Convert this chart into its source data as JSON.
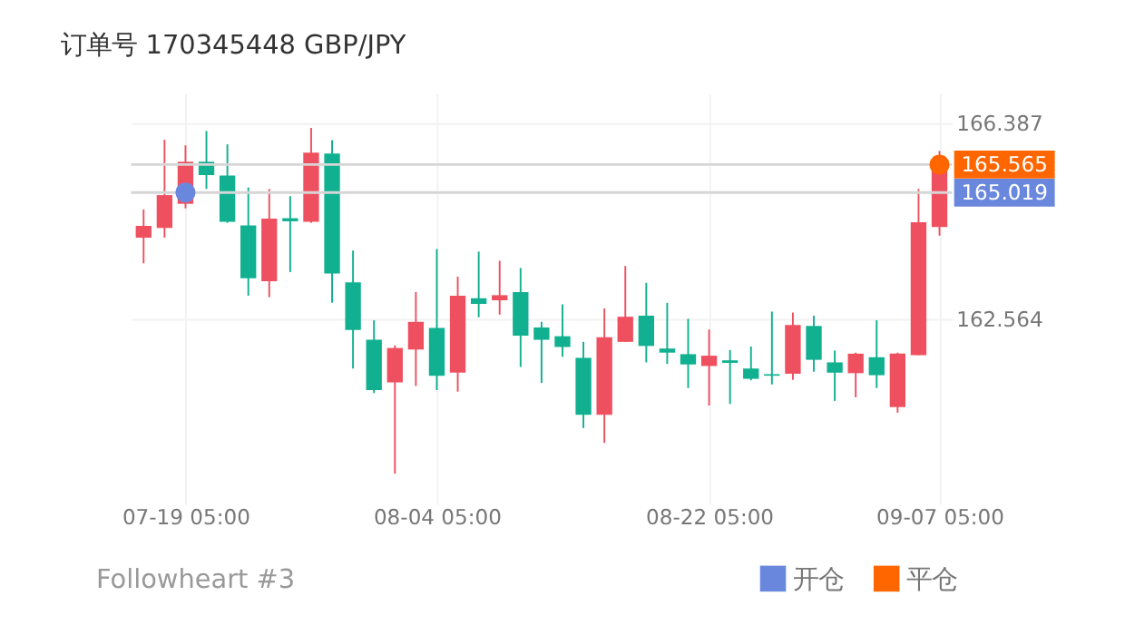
{
  "chart_data": {
    "type": "candlestick",
    "title": "订单号 170345448    GBP/JPY",
    "categories": [
      null,
      null,
      "07-19 05:00",
      null,
      null,
      null,
      null,
      null,
      null,
      null,
      null,
      null,
      null,
      null,
      "08-04 05:00",
      null,
      null,
      null,
      null,
      null,
      null,
      null,
      null,
      null,
      null,
      null,
      null,
      "08-22 05:00",
      null,
      null,
      null,
      null,
      null,
      null,
      null,
      null,
      null,
      null,
      "09-07 05:00"
    ],
    "ohlc": [
      [
        164.14,
        164.69,
        163.64,
        164.37
      ],
      [
        164.33,
        166.05,
        164.14,
        164.97
      ],
      [
        164.8,
        165.94,
        164.71,
        165.62
      ],
      [
        165.62,
        166.22,
        165.09,
        165.36
      ],
      [
        165.35,
        165.96,
        164.43,
        164.45
      ],
      [
        164.38,
        165.12,
        163.01,
        163.35
      ],
      [
        163.29,
        165.09,
        162.98,
        164.51
      ],
      [
        164.52,
        164.95,
        163.47,
        164.46
      ],
      [
        164.45,
        166.28,
        164.43,
        165.8
      ],
      [
        165.78,
        166.04,
        162.87,
        163.44
      ],
      [
        163.27,
        163.89,
        161.59,
        162.34
      ],
      [
        162.15,
        162.53,
        161.11,
        161.17
      ],
      [
        161.32,
        162.04,
        159.54,
        161.99
      ],
      [
        161.96,
        163.08,
        161.25,
        162.5
      ],
      [
        162.38,
        163.92,
        161.17,
        161.45
      ],
      [
        161.51,
        163.38,
        161.14,
        163.01
      ],
      [
        162.96,
        163.87,
        162.59,
        162.85
      ],
      [
        162.92,
        163.69,
        162.64,
        163.02
      ],
      [
        163.08,
        163.55,
        161.62,
        162.23
      ],
      [
        162.39,
        162.5,
        161.31,
        162.15
      ],
      [
        162.22,
        162.84,
        161.82,
        162.01
      ],
      [
        161.8,
        162.11,
        160.43,
        160.69
      ],
      [
        160.69,
        162.76,
        160.14,
        162.2
      ],
      [
        162.11,
        163.59,
        162.11,
        162.6
      ],
      [
        162.62,
        163.26,
        161.71,
        162.03
      ],
      [
        161.98,
        162.87,
        161.68,
        161.9
      ],
      [
        161.87,
        162.56,
        161.21,
        161.67
      ],
      [
        161.64,
        162.35,
        160.87,
        161.84
      ],
      [
        161.75,
        161.95,
        160.9,
        161.7
      ],
      [
        161.59,
        162.02,
        161.36,
        161.39
      ],
      [
        161.48,
        162.7,
        161.28,
        161.45
      ],
      [
        161.49,
        162.68,
        161.37,
        162.44
      ],
      [
        162.42,
        162.62,
        161.53,
        161.76
      ],
      [
        161.71,
        161.94,
        160.96,
        161.51
      ],
      [
        161.5,
        161.9,
        161.03,
        161.88
      ],
      [
        161.81,
        162.53,
        161.21,
        161.46
      ],
      [
        160.84,
        161.9,
        160.73,
        161.88
      ],
      [
        161.85,
        165.09,
        161.85,
        164.44
      ],
      [
        164.35,
        165.83,
        164.18,
        165.66
      ]
    ],
    "colors": [
      "#ef5060",
      "#ef5060",
      "#ef5060",
      "#10b090",
      "#10b090",
      "#10b090",
      "#ef5060",
      "#10b090",
      "#ef5060",
      "#10b090",
      "#10b090",
      "#10b090",
      "#ef5060",
      "#ef5060",
      "#10b090",
      "#ef5060",
      "#10b090",
      "#ef5060",
      "#10b090",
      "#10b090",
      "#10b090",
      "#10b090",
      "#ef5060",
      "#ef5060",
      "#10b090",
      "#10b090",
      "#10b090",
      "#ef5060",
      "#10b090",
      "#10b090",
      "#10b090",
      "#ef5060",
      "#10b090",
      "#10b090",
      "#ef5060",
      "#10b090",
      "#ef5060",
      "#ef5060",
      "#ef5060"
    ],
    "series": [
      {
        "name": "开仓",
        "type": "scatter",
        "color": "#6a87de",
        "x": [
          "07-19 05:00"
        ],
        "values": [
          165.019
        ]
      },
      {
        "name": "平仓",
        "type": "scatter",
        "color": "#ff6600",
        "x": [
          "09-07 05:00"
        ],
        "values": [
          165.565
        ]
      }
    ],
    "ref_lines": [
      {
        "axis": "y",
        "value": 165.565,
        "label": "165.565",
        "color": "#d6d6d6"
      },
      {
        "axis": "y",
        "value": 165.019,
        "label": "165.019",
        "color": "#d6d6d6"
      }
    ],
    "ylim": [
      158.95,
      166.95
    ],
    "yticks": [
      166.387,
      162.564
    ],
    "grid": true,
    "marker": "circle",
    "legend": "bottom right",
    "annotations": [
      "Followheart #3"
    ]
  }
}
